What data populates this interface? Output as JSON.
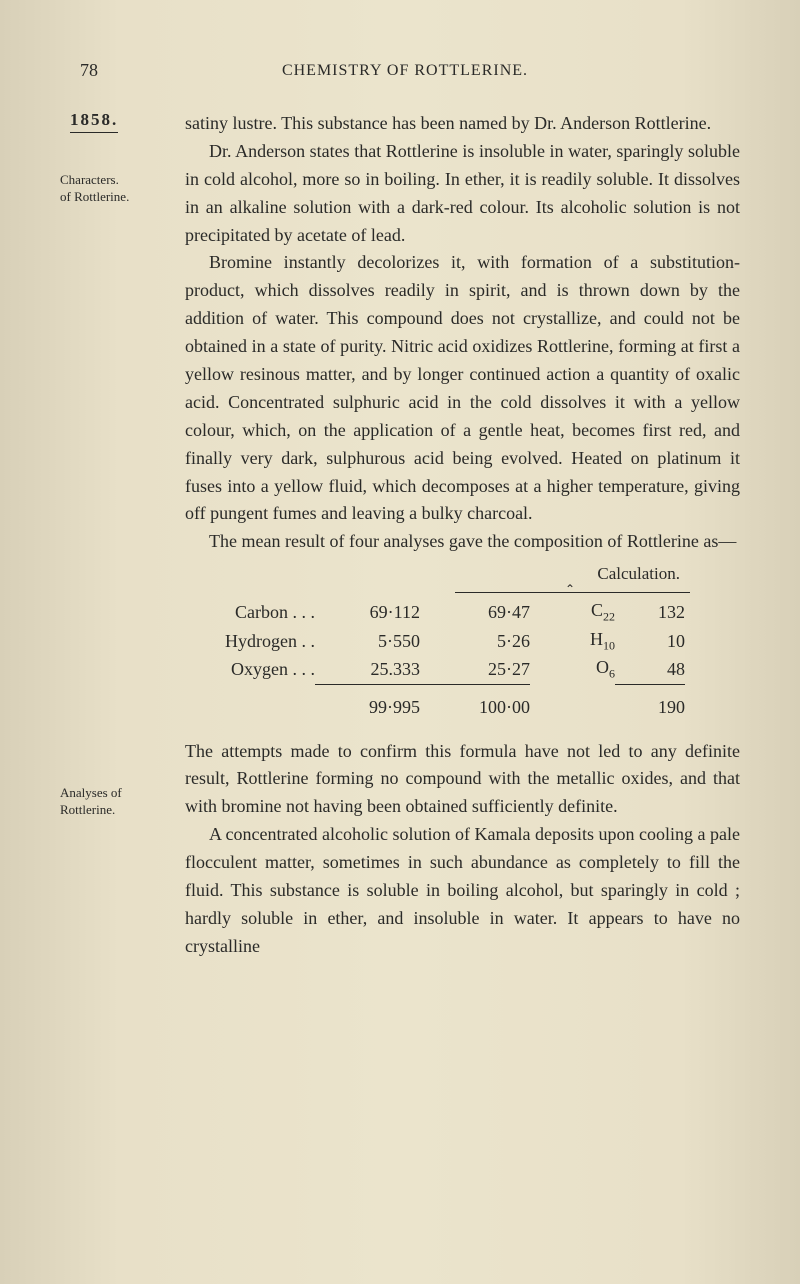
{
  "page_number": "78",
  "running_head": "CHEMISTRY OF ROTTLERINE.",
  "year": "1858.",
  "margin_notes": {
    "note1_line1": "Characters.",
    "note1_line2": "of Rottlerine.",
    "note2_line1": "Analyses of",
    "note2_line2": "Rottlerine."
  },
  "paragraphs": {
    "p1": "satiny lustre. This substance has been named by Dr. Anderson Rottlerine.",
    "p2": "Dr. Anderson states that Rottlerine is insoluble in water, sparingly soluble in cold alcohol, more so in boiling. In ether, it is readily soluble. It dissolves in an alkaline solution with a dark-red colour. Its alcoholic solution is not precipitated by acetate of lead.",
    "p3": "Bromine instantly decolorizes it, with formation of a substitution-product, which dissolves readily in spirit, and is thrown down by the addition of water. This compound does not crystallize, and could not be obtained in a state of purity. Nitric acid oxidizes Rottlerine, forming at first a yellow resinous matter, and by longer continued action a quantity of oxalic acid. Concentrated sulphuric acid in the cold dissolves it with a yellow colour, which, on the application of a gentle heat, becomes first red, and finally very dark, sulphurous acid being evolved. Heated on platinum it fuses into a yellow fluid, which decomposes at a higher temperature, giving off pungent fumes and leaving a bulky charcoal.",
    "p4": "The mean result of four analyses gave the composition of Rottlerine as—",
    "p5": "The attempts made to confirm this formula have not led to any definite result, Rottlerine forming no compound with the metallic oxides, and that with bromine not having been obtained sufficiently definite.",
    "p6": "A concentrated alcoholic solution of Kamala deposits upon cooling a pale flocculent matter, sometimes in such abundance as completely to fill the fluid. This substance is soluble in boiling alcohol, but sparingly in cold ; hardly soluble in ether, and insoluble in water. It appears to have no crystalline"
  },
  "table": {
    "calc_label": "Calculation.",
    "rows": [
      {
        "label": "Carbon . . .",
        "v1": "69·112",
        "v2": "69·47",
        "sym": "C",
        "sub": "22",
        "v3": "132"
      },
      {
        "label": "Hydrogen . .",
        "v1": "5·550",
        "v2": "5·26",
        "sym": "H",
        "sub": "10",
        "v3": "10"
      },
      {
        "label": "Oxygen . . .",
        "v1": "25.333",
        "v2": "25·27",
        "sym": "O",
        "sub": "6",
        "v3": "48"
      }
    ],
    "totals": {
      "v1": "99·995",
      "v2": "100·00",
      "v3": "190"
    }
  }
}
